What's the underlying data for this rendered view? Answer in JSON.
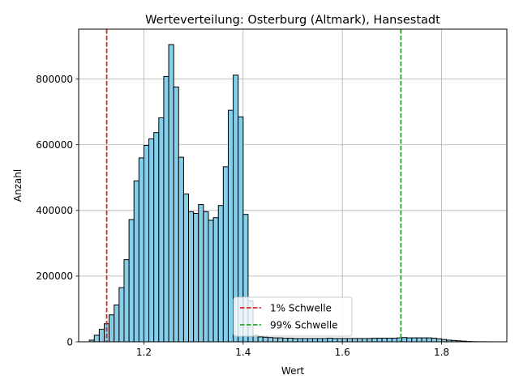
{
  "chart_data": {
    "type": "bar",
    "title": "Werteverteilung: Osterburg (Altmark), Hansestadt",
    "xlabel": "Wert",
    "ylabel": "Anzahl",
    "xlim": [
      1.0685,
      1.9315
    ],
    "ylim": [
      0,
      952000
    ],
    "bin_width": 0.01,
    "x_ticks": [
      1.2,
      1.4,
      1.6,
      1.8
    ],
    "x_tick_labels": [
      "1.2",
      "1.4",
      "1.6",
      "1.8"
    ],
    "y_ticks": [
      0,
      200000,
      400000,
      600000,
      800000
    ],
    "y_tick_labels": [
      "0",
      "200000",
      "400000",
      "600000",
      "800000"
    ],
    "grid": true,
    "legend_position": "lower-center",
    "bar_color": "#87ceeb",
    "bar_edge_color": "#000000",
    "bin_starts": [
      1.09,
      1.1,
      1.11,
      1.12,
      1.13,
      1.14,
      1.15,
      1.16,
      1.17,
      1.18,
      1.19,
      1.2,
      1.21,
      1.22,
      1.23,
      1.24,
      1.25,
      1.26,
      1.27,
      1.28,
      1.29,
      1.3,
      1.31,
      1.32,
      1.33,
      1.34,
      1.35,
      1.36,
      1.37,
      1.38,
      1.39,
      1.4,
      1.41,
      1.42,
      1.43,
      1.44,
      1.45,
      1.46,
      1.47,
      1.48,
      1.49,
      1.5,
      1.51,
      1.52,
      1.53,
      1.54,
      1.55,
      1.56,
      1.57,
      1.58,
      1.59,
      1.6,
      1.61,
      1.62,
      1.63,
      1.64,
      1.65,
      1.66,
      1.67,
      1.68,
      1.69,
      1.7,
      1.71,
      1.72,
      1.73,
      1.74,
      1.75,
      1.76,
      1.77,
      1.78,
      1.79,
      1.8,
      1.81,
      1.82,
      1.83,
      1.84,
      1.85,
      1.86,
      1.87,
      1.88,
      1.89,
      1.9
    ],
    "values": [
      5000,
      20000,
      38000,
      55000,
      82000,
      112000,
      165000,
      250000,
      372000,
      490000,
      560000,
      598000,
      618000,
      637000,
      682000,
      808000,
      905000,
      776000,
      562000,
      450000,
      396000,
      391000,
      418000,
      396000,
      370000,
      378000,
      415000,
      533000,
      705000,
      812000,
      685000,
      388000,
      125000,
      20000,
      15000,
      14000,
      13000,
      12000,
      12000,
      11000,
      11000,
      10000,
      10000,
      10000,
      10000,
      10000,
      10000,
      10000,
      11000,
      10000,
      10000,
      10000,
      10000,
      10000,
      10000,
      10000,
      10000,
      11000,
      11000,
      11000,
      11000,
      11000,
      12000,
      13000,
      12000,
      12000,
      12000,
      12000,
      12000,
      11000,
      9000,
      7000,
      5000,
      4000,
      3000,
      2000,
      1000,
      500,
      300,
      200,
      100,
      100
    ],
    "reference_lines": [
      {
        "name": "1% Schwelle",
        "x": 1.125,
        "color": "#d62728"
      },
      {
        "name": "99% Schwelle",
        "x": 1.718,
        "color": "#2ca02c"
      }
    ]
  }
}
